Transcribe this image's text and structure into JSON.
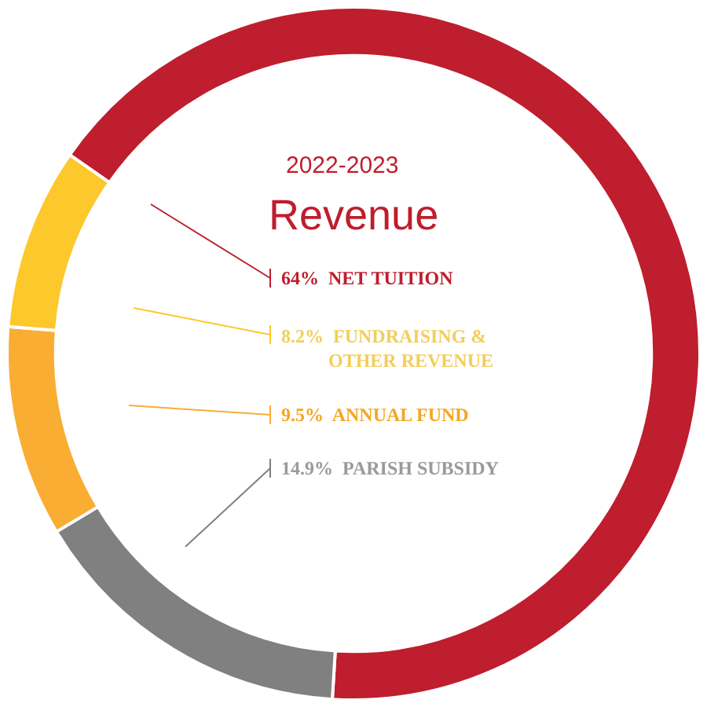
{
  "chart_data": {
    "type": "donut",
    "title": "2022-2023",
    "subtitle": "Revenue",
    "categories": [
      "NET TUITION",
      "PARISH SUBSIDY",
      "ANNUAL FUND",
      "FUNDRAISING & OTHER REVENUE"
    ],
    "values": [
      64,
      14.9,
      9.5,
      8.2
    ],
    "value_labels": [
      "64%",
      "14.9%",
      "9.5%",
      "8.2%"
    ],
    "colors": [
      "#be1e2d",
      "#808080",
      "#f9ad33",
      "#fdc82b"
    ],
    "legend": false
  }
}
